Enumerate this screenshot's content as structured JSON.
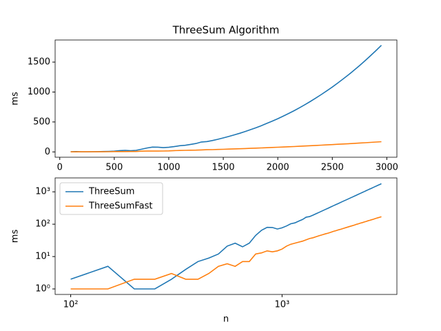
{
  "chart_data": [
    {
      "type": "line",
      "title": "ThreeSum Algorithm",
      "xlabel": "n",
      "ylabel": "ms",
      "x": [
        100,
        150,
        200,
        250,
        300,
        350,
        400,
        450,
        500,
        550,
        600,
        650,
        700,
        750,
        800,
        850,
        900,
        950,
        1000,
        1050,
        1100,
        1150,
        1200,
        1250,
        1300,
        1350,
        1400,
        1450,
        1500,
        1550,
        1600,
        1650,
        1700,
        1750,
        1800,
        1850,
        1900,
        1950,
        2000,
        2050,
        2100,
        2150,
        2200,
        2250,
        2300,
        2350,
        2400,
        2450,
        2500,
        2550,
        2600,
        2650,
        2700,
        2750,
        2800,
        2850,
        2900,
        2950
      ],
      "series": [
        {
          "color": "#1f77b4",
          "values": [
            2,
            5,
            1,
            1,
            2,
            4,
            7,
            9,
            12,
            21,
            26,
            20,
            26,
            45,
            65,
            80,
            79,
            71,
            77,
            88,
            103,
            110,
            125,
            140,
            165,
            172,
            190,
            211,
            234,
            258,
            284,
            311,
            341,
            372,
            404,
            439,
            476,
            514,
            555,
            597,
            642,
            689,
            738,
            790,
            844,
            900,
            959,
            1020,
            1083,
            1150,
            1219,
            1290,
            1365,
            1442,
            1522,
            1605,
            1691,
            1780
          ]
        },
        {
          "color": "#ff7f0e",
          "values": [
            1,
            1,
            2,
            2,
            3,
            2,
            2,
            3,
            5,
            6,
            5,
            7,
            7,
            12,
            13,
            15,
            14,
            15,
            17,
            21,
            24,
            26,
            28,
            30,
            33,
            36,
            38,
            41,
            44,
            47,
            50,
            53,
            56,
            60,
            63,
            67,
            70,
            74,
            78,
            82,
            86,
            90,
            94,
            99,
            103,
            108,
            112,
            117,
            122,
            127,
            132,
            137,
            142,
            148,
            153,
            159,
            164,
            170
          ]
        }
      ],
      "xlim": [
        -42.5,
        3092.5
      ],
      "ylim": [
        -89,
        1869
      ],
      "xticks": [
        0,
        500,
        1000,
        1500,
        2000,
        2500,
        3000
      ],
      "yticks": [
        0,
        500,
        1000,
        1500
      ]
    },
    {
      "type": "line",
      "xlabel": "n",
      "ylabel": "ms",
      "xlog": true,
      "ylog": true,
      "legend": "upper left",
      "x": [
        100,
        150,
        200,
        250,
        300,
        350,
        400,
        450,
        500,
        550,
        600,
        650,
        700,
        750,
        800,
        850,
        900,
        950,
        1000,
        1050,
        1100,
        1150,
        1200,
        1250,
        1300,
        1350,
        1400,
        1450,
        1500,
        1550,
        1600,
        1650,
        1700,
        1750,
        1800,
        1850,
        1900,
        1950,
        2000,
        2050,
        2100,
        2150,
        2200,
        2250,
        2300,
        2350,
        2400,
        2450,
        2500,
        2550,
        2600,
        2650,
        2700,
        2750,
        2800,
        2850,
        2900,
        2950
      ],
      "series": [
        {
          "name": "ThreeSum",
          "color": "#1f77b4",
          "values": [
            2,
            5,
            1,
            1,
            2,
            4,
            7,
            9,
            12,
            21,
            26,
            20,
            26,
            45,
            65,
            80,
            79,
            71,
            77,
            88,
            103,
            110,
            125,
            140,
            165,
            172,
            190,
            211,
            234,
            258,
            284,
            311,
            341,
            372,
            404,
            439,
            476,
            514,
            555,
            597,
            642,
            689,
            738,
            790,
            844,
            900,
            959,
            1020,
            1083,
            1150,
            1219,
            1290,
            1365,
            1442,
            1522,
            1605,
            1691,
            1780
          ]
        },
        {
          "name": "ThreeSumFast",
          "color": "#ff7f0e",
          "values": [
            1,
            1,
            2,
            2,
            3,
            2,
            2,
            3,
            5,
            6,
            5,
            7,
            7,
            12,
            13,
            15,
            14,
            15,
            17,
            21,
            24,
            26,
            28,
            30,
            33,
            36,
            38,
            41,
            44,
            47,
            50,
            53,
            56,
            60,
            63,
            67,
            70,
            74,
            78,
            82,
            86,
            90,
            94,
            99,
            103,
            108,
            112,
            117,
            122,
            127,
            132,
            137,
            142,
            148,
            153,
            159,
            164,
            170
          ]
        }
      ],
      "xlim": [
        84.4,
        3494
      ],
      "ylim": [
        0.675,
        2690
      ],
      "xticks": [
        {
          "value": 100,
          "label": "10²"
        },
        {
          "value": 1000,
          "label": "10³"
        }
      ],
      "yticks": [
        {
          "value": 1,
          "label": "10⁰"
        },
        {
          "value": 10,
          "label": "10¹"
        },
        {
          "value": 100,
          "label": "10²"
        },
        {
          "value": 1000,
          "label": "10³"
        }
      ]
    }
  ]
}
